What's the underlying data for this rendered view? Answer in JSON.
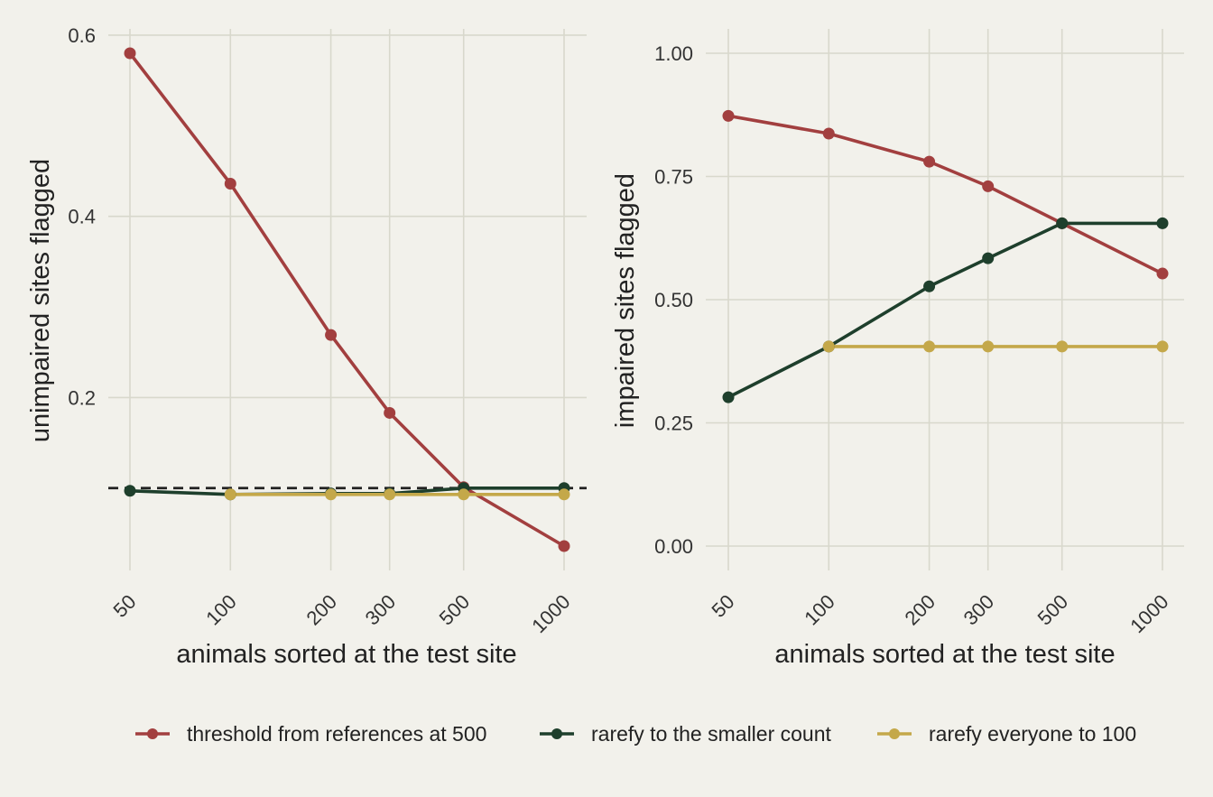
{
  "chart_data": [
    {
      "type": "line",
      "xscale": "log",
      "x": [
        50,
        100,
        200,
        300,
        500,
        1000
      ],
      "x_ticks": [
        "50",
        "100",
        "200",
        "300",
        "500",
        "1000"
      ],
      "xlabel": "animals sorted at the test site",
      "ylabel": "unimpaired sites flagged",
      "ylim": [
        0.035,
        0.615
      ],
      "y_ticks": [
        "0.2",
        "0.4",
        "0.6"
      ],
      "y_tick_values": [
        0.2,
        0.4,
        0.6
      ],
      "grid": true,
      "reference_line": {
        "y": 0.1,
        "style": "dashed",
        "color": "#222222"
      },
      "series": [
        {
          "name": "threshold from references at 500",
          "color": "#a23f3f",
          "x": [
            50,
            100,
            200,
            300,
            500,
            1000
          ],
          "y": [
            0.58,
            0.436,
            0.269,
            0.183,
            0.101,
            0.036
          ]
        },
        {
          "name": "rarefy to the smaller count",
          "color": "#1e3f2c",
          "x": [
            50,
            100,
            200,
            300,
            500,
            1000
          ],
          "y": [
            0.097,
            0.093,
            0.094,
            0.094,
            0.1,
            0.1
          ]
        },
        {
          "name": "rarefy everyone to 100",
          "color": "#c4a84a",
          "x": [
            100,
            200,
            300,
            500,
            1000
          ],
          "y": [
            0.093,
            0.093,
            0.093,
            0.093,
            0.093
          ]
        }
      ]
    },
    {
      "type": "line",
      "xscale": "log",
      "x": [
        50,
        100,
        200,
        300,
        500,
        1000
      ],
      "x_ticks": [
        "50",
        "100",
        "200",
        "300",
        "500",
        "1000"
      ],
      "xlabel": "animals sorted at the test site",
      "ylabel": "impaired sites flagged",
      "ylim": [
        -0.05,
        1.05
      ],
      "y_ticks": [
        "0.00",
        "0.25",
        "0.50",
        "0.75",
        "1.00"
      ],
      "y_tick_values": [
        0,
        0.25,
        0.5,
        0.75,
        1.0
      ],
      "grid": true,
      "series": [
        {
          "name": "threshold from references at 500",
          "color": "#a23f3f",
          "x": [
            50,
            100,
            200,
            300,
            500,
            1000
          ],
          "y": [
            0.873,
            0.837,
            0.78,
            0.73,
            0.655,
            0.553
          ]
        },
        {
          "name": "rarefy to the smaller count",
          "color": "#1e3f2c",
          "x": [
            50,
            100,
            200,
            300,
            500,
            1000
          ],
          "y": [
            0.302,
            0.405,
            0.527,
            0.584,
            0.655,
            0.655
          ]
        },
        {
          "name": "rarefy everyone to 100",
          "color": "#c4a84a",
          "x": [
            100,
            200,
            300,
            500,
            1000
          ],
          "y": [
            0.405,
            0.405,
            0.405,
            0.405,
            0.405
          ]
        }
      ]
    }
  ],
  "legend": {
    "position": "bottom",
    "items": [
      {
        "label": "threshold from references at 500",
        "color": "#a23f3f"
      },
      {
        "label": "rarefy to the smaller count",
        "color": "#1e3f2c"
      },
      {
        "label": "rarefy everyone to 100",
        "color": "#c4a84a"
      }
    ]
  }
}
